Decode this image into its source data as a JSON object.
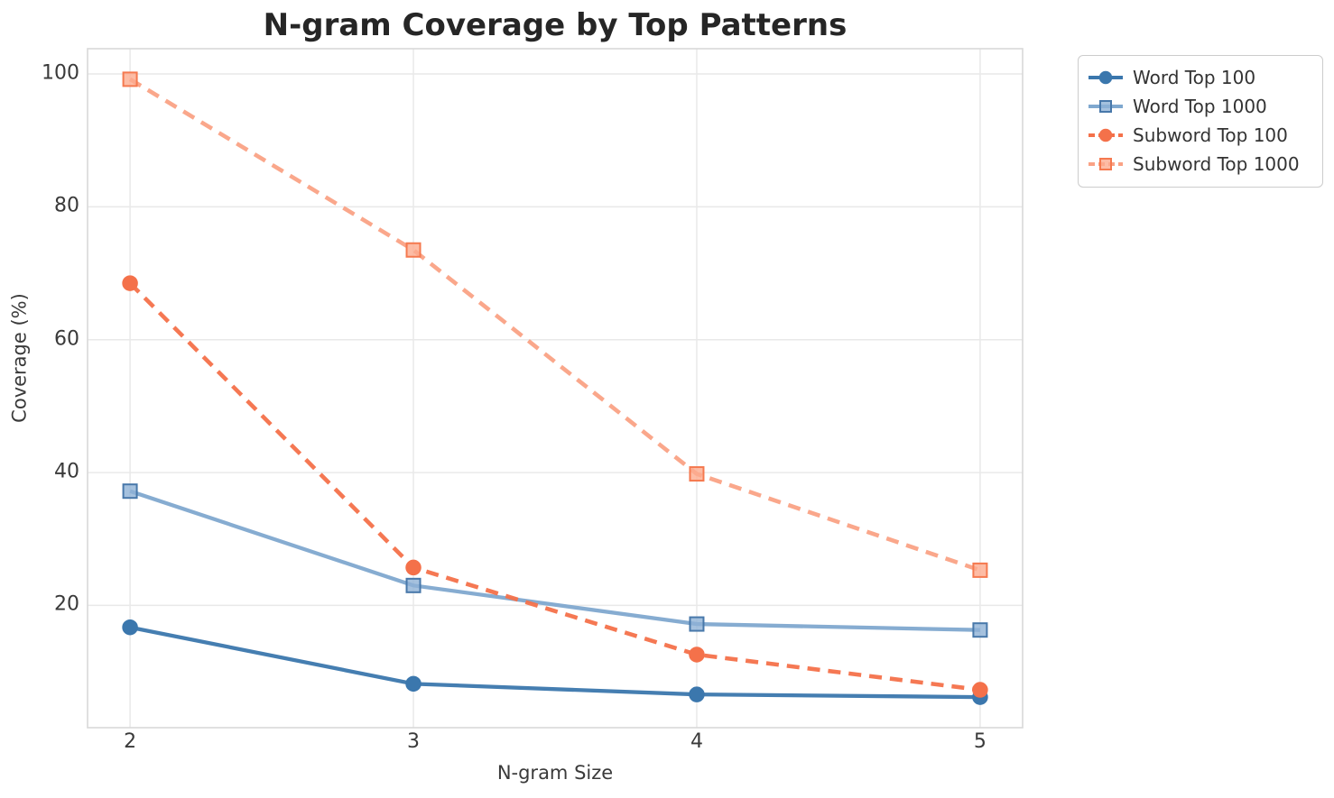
{
  "title": "N-gram Coverage by Top Patterns",
  "chart_data": {
    "type": "line",
    "title": "N-gram Coverage by Top Patterns",
    "xlabel": "N-gram Size",
    "ylabel": "Coverage (%)",
    "x": [
      2,
      3,
      4,
      5
    ],
    "x_ticks": [
      "2",
      "3",
      "4",
      "5"
    ],
    "y_ticks": [
      20,
      40,
      60,
      80,
      100
    ],
    "xlim": [
      1.85,
      5.15
    ],
    "ylim": [
      1.6,
      103.8
    ],
    "grid": true,
    "grid_color": "#e9e9e9",
    "frame_color": "#d9d9d9",
    "background": "#ffffff",
    "legend_position": "outside-top-right",
    "series": [
      {
        "name": "Word Top 100",
        "values": [
          16.7,
          8.2,
          6.6,
          6.2
        ],
        "color": "#3b77ad",
        "edge": "#3b77ad",
        "fill": "#3b77ad",
        "marker": "circle",
        "line": "solid"
      },
      {
        "name": "Word Top 1000",
        "values": [
          37.2,
          23.0,
          17.2,
          16.3
        ],
        "color": "#7fa8cf",
        "edge": "#4878aa",
        "fill": "#8fb2d6",
        "marker": "square",
        "line": "solid"
      },
      {
        "name": "Subword Top 100",
        "values": [
          68.5,
          25.7,
          12.6,
          7.3
        ],
        "color": "#f4714a",
        "edge": "#f4714a",
        "fill": "#f4714a",
        "marker": "circle",
        "line": "dashed"
      },
      {
        "name": "Subword Top 1000",
        "values": [
          99.2,
          73.5,
          39.8,
          25.3
        ],
        "color": "#faa285",
        "edge": "#f5794f",
        "fill": "#fcab8f",
        "marker": "square",
        "line": "dashed"
      }
    ]
  }
}
